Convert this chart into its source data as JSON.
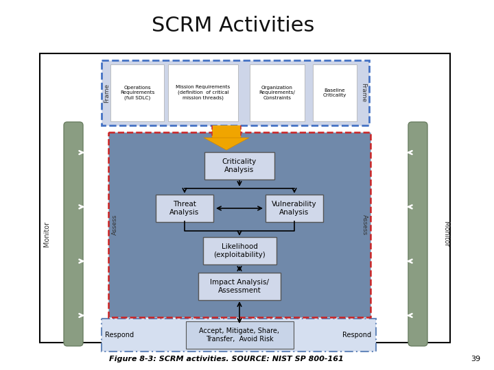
{
  "title": "SCRM Activities",
  "caption": "Figure 8-3: SCRM activities. SOURCE: NIST SP 800-161",
  "page_num": "39",
  "title_fontsize": 22,
  "caption_fontsize": 8,
  "bg_color": "#ffffff",
  "frame_box_color": "#4472c4",
  "frame_box_bg": "#cdd5e8",
  "assess_box_color": "#cc2222",
  "assess_box_bg": "#7089aa",
  "respond_box_color": "#6688bb",
  "respond_box_bg": "#d5dff0",
  "inner_box_bg": "#d0d8ea",
  "inner_box_outline": "#555555",
  "arrow_color": "#f0a500",
  "sidebar_color": "#8a9e7a",
  "sidebar_edge": "#6a7e5a",
  "frame_items": [
    "Operations\nRequirements\n(full SDLC)",
    "Mission Requirements\n(definition  of critical\nmission threads)",
    "Organization\nRequirements/\nConstraints",
    "Baseline\nCriticality"
  ],
  "respond_text": "Accept, Mitigate, Share,\nTransfer,  Avoid Risk"
}
